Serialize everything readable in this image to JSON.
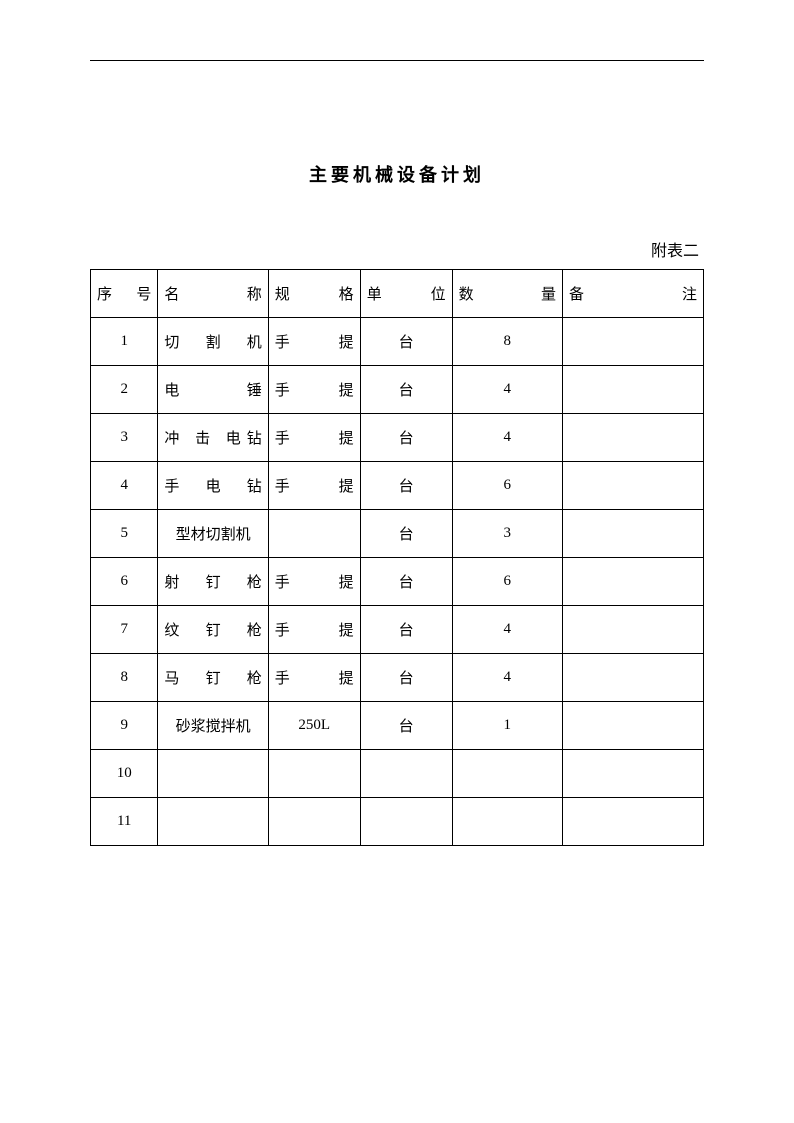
{
  "document": {
    "title": "主要机械设备计划",
    "appendix_label": "附表二",
    "background_color": "#ffffff",
    "text_color": "#000000",
    "border_color": "#000000",
    "title_fontsize": 18,
    "body_fontsize": 15
  },
  "table": {
    "type": "table",
    "columns": [
      {
        "key": "seq",
        "label": "序 号",
        "width": "11%",
        "align": "center"
      },
      {
        "key": "name",
        "label": "名 称",
        "width": "18%",
        "align": "justify"
      },
      {
        "key": "spec",
        "label": "规 格",
        "width": "15%",
        "align": "justify"
      },
      {
        "key": "unit",
        "label": "单 位",
        "width": "15%",
        "align": "center"
      },
      {
        "key": "qty",
        "label": "数 量",
        "width": "18%",
        "align": "center"
      },
      {
        "key": "note",
        "label": "备 注",
        "width": "23%",
        "align": "center"
      }
    ],
    "rows": [
      {
        "seq": "1",
        "name": "切 割 机",
        "spec": "手 提",
        "unit": "台",
        "qty": "8",
        "note": ""
      },
      {
        "seq": "2",
        "name": "电 锤",
        "spec": "手 提",
        "unit": "台",
        "qty": "4",
        "note": ""
      },
      {
        "seq": "3",
        "name": "冲 击 电钻",
        "spec": "手 提",
        "unit": "台",
        "qty": "4",
        "note": ""
      },
      {
        "seq": "4",
        "name": "手 电 钻",
        "spec": "手 提",
        "unit": "台",
        "qty": "6",
        "note": ""
      },
      {
        "seq": "5",
        "name": "型材切割机",
        "spec": "",
        "unit": "台",
        "qty": "3",
        "note": ""
      },
      {
        "seq": "6",
        "name": "射 钉 枪",
        "spec": "手 提",
        "unit": "台",
        "qty": "6",
        "note": ""
      },
      {
        "seq": "7",
        "name": "纹 钉 枪",
        "spec": "手 提",
        "unit": "台",
        "qty": "4",
        "note": ""
      },
      {
        "seq": "8",
        "name": "马 钉 枪",
        "spec": "手 提",
        "unit": "台",
        "qty": "4",
        "note": ""
      },
      {
        "seq": "9",
        "name": "砂浆搅拌机",
        "spec": "250L",
        "unit": "台",
        "qty": "1",
        "note": ""
      },
      {
        "seq": "10",
        "name": "",
        "spec": "",
        "unit": "",
        "qty": "",
        "note": ""
      },
      {
        "seq": "11",
        "name": "",
        "spec": "",
        "unit": "",
        "qty": "",
        "note": ""
      }
    ]
  }
}
